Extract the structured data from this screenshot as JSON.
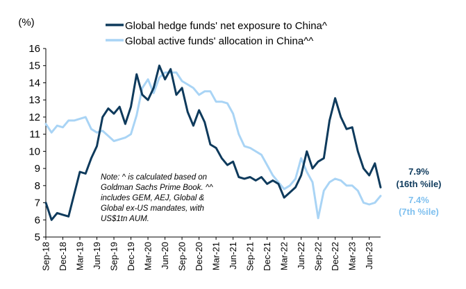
{
  "chart_data": {
    "type": "line",
    "unit_label": "(%)",
    "ylim": [
      5,
      16
    ],
    "yticks": [
      5,
      6,
      7,
      8,
      9,
      10,
      11,
      12,
      13,
      14,
      15,
      16
    ],
    "xlim": [
      "2018-09",
      "2023-08"
    ],
    "xtick_labels": [
      "Sep-18",
      "Dec-18",
      "Mar-19",
      "Jun-19",
      "Sep-19",
      "Dec-19",
      "Mar-20",
      "Jun-20",
      "Sep-20",
      "Dec-20",
      "Mar-21",
      "Jun-21",
      "Sep-21",
      "Dec-21",
      "Mar-22",
      "Jun-22",
      "Sep-22",
      "Dec-22",
      "Mar-23",
      "Jun-23"
    ],
    "grid": false,
    "legend_position": "top",
    "series": [
      {
        "name": "Global hedge funds' net exposure to China^",
        "color": "#0e3a5c",
        "points": [
          [
            "2018-09",
            7.0
          ],
          [
            "2018-10",
            6.0
          ],
          [
            "2018-11",
            6.4
          ],
          [
            "2018-12",
            6.3
          ],
          [
            "2019-01",
            6.2
          ],
          [
            "2019-02",
            7.5
          ],
          [
            "2019-03",
            8.8
          ],
          [
            "2019-04",
            8.7
          ],
          [
            "2019-05",
            9.6
          ],
          [
            "2019-06",
            10.3
          ],
          [
            "2019-07",
            12.0
          ],
          [
            "2019-08",
            12.5
          ],
          [
            "2019-09",
            12.2
          ],
          [
            "2019-10",
            12.6
          ],
          [
            "2019-11",
            11.6
          ],
          [
            "2019-12",
            12.6
          ],
          [
            "2020-01",
            14.5
          ],
          [
            "2020-02",
            13.3
          ],
          [
            "2020-03",
            13.0
          ],
          [
            "2020-04",
            13.7
          ],
          [
            "2020-05",
            15.0
          ],
          [
            "2020-06",
            14.2
          ],
          [
            "2020-07",
            14.8
          ],
          [
            "2020-08",
            13.3
          ],
          [
            "2020-09",
            13.7
          ],
          [
            "2020-10",
            12.3
          ],
          [
            "2020-11",
            11.5
          ],
          [
            "2020-12",
            12.4
          ],
          [
            "2021-01",
            11.7
          ],
          [
            "2021-02",
            10.4
          ],
          [
            "2021-03",
            10.2
          ],
          [
            "2021-04",
            9.6
          ],
          [
            "2021-05",
            9.2
          ],
          [
            "2021-06",
            9.4
          ],
          [
            "2021-07",
            8.5
          ],
          [
            "2021-08",
            8.4
          ],
          [
            "2021-09",
            8.5
          ],
          [
            "2021-10",
            8.3
          ],
          [
            "2021-11",
            8.5
          ],
          [
            "2021-12",
            8.1
          ],
          [
            "2022-01",
            8.3
          ],
          [
            "2022-02",
            8.1
          ],
          [
            "2022-03",
            7.3
          ],
          [
            "2022-04",
            7.6
          ],
          [
            "2022-05",
            7.9
          ],
          [
            "2022-06",
            8.6
          ],
          [
            "2022-07",
            10.0
          ],
          [
            "2022-08",
            9.0
          ],
          [
            "2022-09",
            9.4
          ],
          [
            "2022-10",
            9.6
          ],
          [
            "2022-11",
            11.8
          ],
          [
            "2022-12",
            13.1
          ],
          [
            "2023-01",
            12.0
          ],
          [
            "2023-02",
            11.3
          ],
          [
            "2023-03",
            11.4
          ],
          [
            "2023-04",
            10.0
          ],
          [
            "2023-05",
            9.0
          ],
          [
            "2023-06",
            8.6
          ],
          [
            "2023-07",
            9.3
          ],
          [
            "2023-08",
            7.9
          ]
        ]
      },
      {
        "name": "Global active funds' allocation in China^^",
        "color": "#a9d4f5",
        "points": [
          [
            "2018-09",
            11.6
          ],
          [
            "2018-10",
            11.1
          ],
          [
            "2018-11",
            11.5
          ],
          [
            "2018-12",
            11.4
          ],
          [
            "2019-01",
            11.8
          ],
          [
            "2019-02",
            11.8
          ],
          [
            "2019-03",
            11.9
          ],
          [
            "2019-04",
            12.0
          ],
          [
            "2019-05",
            11.3
          ],
          [
            "2019-06",
            11.1
          ],
          [
            "2019-07",
            11.2
          ],
          [
            "2019-08",
            10.9
          ],
          [
            "2019-09",
            10.6
          ],
          [
            "2019-10",
            10.7
          ],
          [
            "2019-11",
            10.8
          ],
          [
            "2019-12",
            11.0
          ],
          [
            "2020-01",
            12.1
          ],
          [
            "2020-02",
            13.7
          ],
          [
            "2020-03",
            14.2
          ],
          [
            "2020-04",
            13.4
          ],
          [
            "2020-05",
            14.3
          ],
          [
            "2020-06",
            14.6
          ],
          [
            "2020-07",
            14.6
          ],
          [
            "2020-08",
            14.6
          ],
          [
            "2020-09",
            14.1
          ],
          [
            "2020-10",
            13.9
          ],
          [
            "2020-11",
            13.7
          ],
          [
            "2020-12",
            13.3
          ],
          [
            "2021-01",
            13.5
          ],
          [
            "2021-02",
            13.5
          ],
          [
            "2021-03",
            12.9
          ],
          [
            "2021-04",
            12.9
          ],
          [
            "2021-05",
            12.8
          ],
          [
            "2021-06",
            12.2
          ],
          [
            "2021-07",
            11.0
          ],
          [
            "2021-08",
            10.3
          ],
          [
            "2021-09",
            10.2
          ],
          [
            "2021-10",
            10.0
          ],
          [
            "2021-11",
            9.8
          ],
          [
            "2021-12",
            9.2
          ],
          [
            "2022-01",
            8.6
          ],
          [
            "2022-02",
            8.2
          ],
          [
            "2022-03",
            7.8
          ],
          [
            "2022-04",
            8.0
          ],
          [
            "2022-05",
            8.4
          ],
          [
            "2022-06",
            9.6
          ],
          [
            "2022-07",
            8.8
          ],
          [
            "2022-08",
            8.2
          ],
          [
            "2022-09",
            6.1
          ],
          [
            "2022-10",
            7.7
          ],
          [
            "2022-11",
            8.2
          ],
          [
            "2022-12",
            8.4
          ],
          [
            "2023-01",
            8.3
          ],
          [
            "2023-02",
            8.0
          ],
          [
            "2023-03",
            8.0
          ],
          [
            "2023-04",
            7.7
          ],
          [
            "2023-05",
            7.0
          ],
          [
            "2023-06",
            6.9
          ],
          [
            "2023-07",
            7.0
          ],
          [
            "2023-08",
            7.4
          ]
        ]
      }
    ],
    "end_labels": [
      {
        "series": 0,
        "lines": [
          "7.9%",
          "(16th %ile)"
        ]
      },
      {
        "series": 1,
        "lines": [
          "7.4%",
          "(7th %ile)"
        ]
      }
    ],
    "annotation": [
      "Note: ^ is calculated based on",
      "Goldman Sachs Prime Book. ^^",
      "includes GEM, AEJ, Global &",
      "Global ex-US mandates, with",
      "US$1tn AUM."
    ]
  }
}
